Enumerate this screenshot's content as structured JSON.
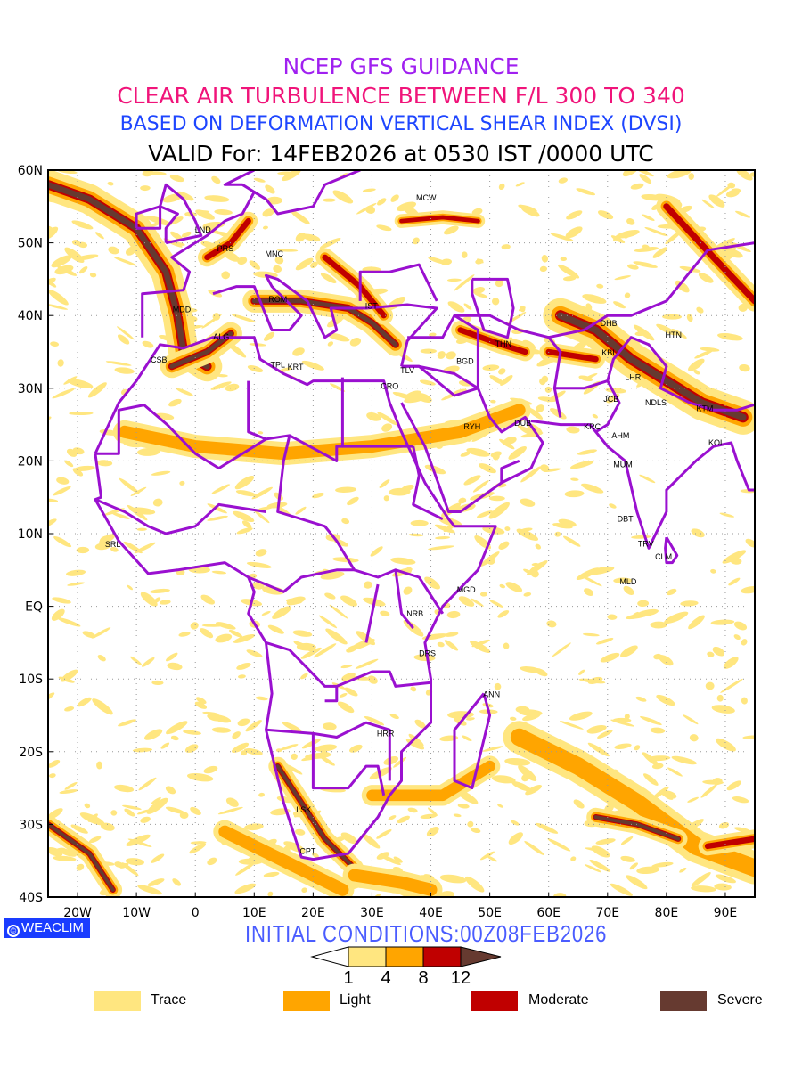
{
  "titles": {
    "line1": "NCEP GFS GUIDANCE",
    "line2": "CLEAR AIR TURBULENCE BETWEEN F/L 300 TO 340",
    "line3": "BASED ON DEFORMATION VERTICAL SHEAR INDEX (DVSI)",
    "line4": "VALID For: 14FEB2026 at 0530 IST /0000 UTC"
  },
  "initial_conditions": "INITIAL CONDITIONS:00Z08FEB2026",
  "badge": {
    "symbol": "©",
    "label": "WEACLIM"
  },
  "map": {
    "lon_range": [
      -25,
      95
    ],
    "lat_range": [
      -40,
      60
    ],
    "lat_ticks": [
      {
        "v": 60,
        "label": "60N"
      },
      {
        "v": 50,
        "label": "50N"
      },
      {
        "v": 40,
        "label": "40N"
      },
      {
        "v": 30,
        "label": "30N"
      },
      {
        "v": 20,
        "label": "20N"
      },
      {
        "v": 10,
        "label": "10N"
      },
      {
        "v": 0,
        "label": "EQ"
      },
      {
        "v": -10,
        "label": "10S"
      },
      {
        "v": -20,
        "label": "20S"
      },
      {
        "v": -30,
        "label": "30S"
      },
      {
        "v": -40,
        "label": "40S"
      }
    ],
    "lon_ticks": [
      {
        "v": -20,
        "label": "20W"
      },
      {
        "v": -10,
        "label": "10W"
      },
      {
        "v": 0,
        "label": "0"
      },
      {
        "v": 10,
        "label": "10E"
      },
      {
        "v": 20,
        "label": "20E"
      },
      {
        "v": 30,
        "label": "30E"
      },
      {
        "v": 40,
        "label": "40E"
      },
      {
        "v": 50,
        "label": "50E"
      },
      {
        "v": 60,
        "label": "60E"
      },
      {
        "v": 70,
        "label": "70E"
      },
      {
        "v": 80,
        "label": "80E"
      },
      {
        "v": 90,
        "label": "90E"
      }
    ],
    "stations": [
      {
        "name": "MCW",
        "lon": 39.2,
        "lat": 56.2
      },
      {
        "name": "LND",
        "lon": 1.3,
        "lat": 51.8
      },
      {
        "name": "PRS",
        "lon": 5.1,
        "lat": 49.2
      },
      {
        "name": "MNC",
        "lon": 13.4,
        "lat": 48.5
      },
      {
        "name": "ROM",
        "lon": 14.0,
        "lat": 42.2
      },
      {
        "name": "IST",
        "lon": 29.9,
        "lat": 41.3
      },
      {
        "name": "MDD",
        "lon": -2.3,
        "lat": 40.8
      },
      {
        "name": "ALG",
        "lon": 4.4,
        "lat": 37.1
      },
      {
        "name": "CSB",
        "lon": -6.2,
        "lat": 33.9
      },
      {
        "name": "TPL",
        "lon": 14.0,
        "lat": 33.2
      },
      {
        "name": "KRT",
        "lon": 17.0,
        "lat": 32.9
      },
      {
        "name": "TLV",
        "lon": 36.0,
        "lat": 32.4
      },
      {
        "name": "CRO",
        "lon": 33.0,
        "lat": 30.3
      },
      {
        "name": "BGD",
        "lon": 45.8,
        "lat": 33.7
      },
      {
        "name": "THN",
        "lon": 52.3,
        "lat": 36.1
      },
      {
        "name": "DHB",
        "lon": 70.2,
        "lat": 38.9
      },
      {
        "name": "KBL",
        "lon": 70.3,
        "lat": 34.9
      },
      {
        "name": "HTN",
        "lon": 81.2,
        "lat": 37.3
      },
      {
        "name": "LHR",
        "lon": 74.3,
        "lat": 31.5
      },
      {
        "name": "JCB",
        "lon": 70.6,
        "lat": 28.5
      },
      {
        "name": "NDLS",
        "lon": 78.2,
        "lat": 28.0
      },
      {
        "name": "KTM",
        "lon": 86.5,
        "lat": 27.2
      },
      {
        "name": "RYH",
        "lon": 47.0,
        "lat": 24.7
      },
      {
        "name": "DUB",
        "lon": 55.6,
        "lat": 25.2
      },
      {
        "name": "KRC",
        "lon": 67.4,
        "lat": 24.7
      },
      {
        "name": "AHM",
        "lon": 72.2,
        "lat": 23.5
      },
      {
        "name": "KOL",
        "lon": 88.5,
        "lat": 22.5
      },
      {
        "name": "MUM",
        "lon": 72.6,
        "lat": 19.5
      },
      {
        "name": "DBT",
        "lon": 73.0,
        "lat": 12.0
      },
      {
        "name": "TRV",
        "lon": 76.5,
        "lat": 8.6
      },
      {
        "name": "CLM",
        "lon": 79.5,
        "lat": 6.8
      },
      {
        "name": "MLD",
        "lon": 73.5,
        "lat": 3.4
      },
      {
        "name": "MGD",
        "lon": 46.0,
        "lat": 2.3
      },
      {
        "name": "NRB",
        "lon": 37.3,
        "lat": -1.0
      },
      {
        "name": "DRS",
        "lon": 39.4,
        "lat": -6.5
      },
      {
        "name": "ANN",
        "lon": 50.3,
        "lat": -12.1
      },
      {
        "name": "HRR",
        "lon": 32.3,
        "lat": -17.5
      },
      {
        "name": "LSK",
        "lon": 18.4,
        "lat": -28.0
      },
      {
        "name": "CPT",
        "lon": 19.1,
        "lat": -33.7
      },
      {
        "name": "SRL",
        "lon": -14.0,
        "lat": 8.5
      }
    ]
  },
  "colorbar": {
    "colors": {
      "trace": "#ffe680",
      "light": "#ffa500",
      "moderate": "#c00000",
      "severe": "#663a30"
    },
    "tick_labels": [
      "1",
      "4",
      "8",
      "12"
    ]
  },
  "legend": [
    {
      "label": "Trace",
      "color": "#ffe680"
    },
    {
      "label": "Light",
      "color": "#ffa500"
    },
    {
      "label": "Moderate",
      "color": "#c00000"
    },
    {
      "label": "Severe",
      "color": "#663a30"
    }
  ]
}
